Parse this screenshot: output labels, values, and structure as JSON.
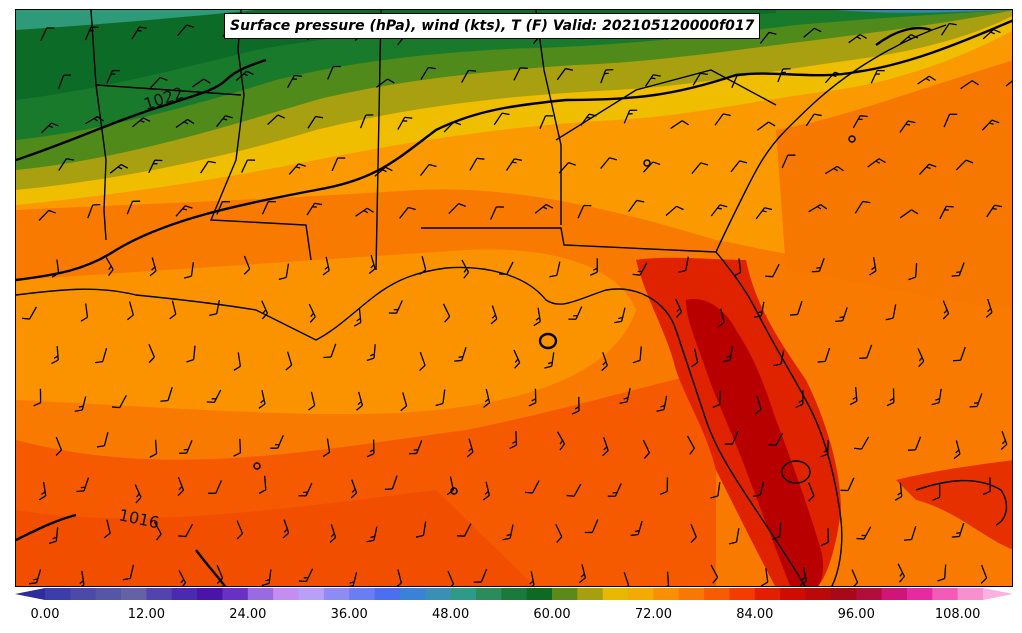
{
  "title": "Surface pressure (hPa), wind (kts), T (F) Valid: 202105120000f017",
  "isobar_labels": [
    "1022",
    "1016"
  ],
  "colorbar": {
    "ticks": [
      "0.00",
      "12.00",
      "24.00",
      "36.00",
      "48.00",
      "60.00",
      "72.00",
      "84.00",
      "96.00",
      "108.00"
    ],
    "colors": [
      "#3b3da8",
      "#4a4aa8",
      "#5656a6",
      "#6262a4",
      "#5244ae",
      "#4a2aae",
      "#4b14a8",
      "#6a30c4",
      "#9a6ae0",
      "#c48ef0",
      "#b8a0f6",
      "#8c8cf4",
      "#6a7ef4",
      "#4a70f0",
      "#3a82d8",
      "#3a90b4",
      "#2e9a8a",
      "#2a8c5a",
      "#1a7a3e",
      "#0c6a22",
      "#5c8a1a",
      "#a6a010",
      "#e8b800",
      "#f4aa00",
      "#f89000",
      "#fa7800",
      "#fa5a00",
      "#f43c00",
      "#e41e00",
      "#d00c00",
      "#bc0808",
      "#a80818",
      "#b40c3c",
      "#d01478",
      "#e82aa0",
      "#f45ab8",
      "#f890d0"
    ]
  },
  "legend_colors": {
    "ocean_warm": "#f97a00",
    "ocean_hot": "#f55a00",
    "land_hot": "#df2200",
    "land_hottest": "#b80000",
    "mid_orange": "#fb9a00",
    "yellow": "#f0be00",
    "olive": "#a8a010",
    "green_light": "#4f8a1a",
    "green": "#1a7a2c",
    "green_dark": "#0d6b28",
    "teal": "#2e9a7a"
  }
}
